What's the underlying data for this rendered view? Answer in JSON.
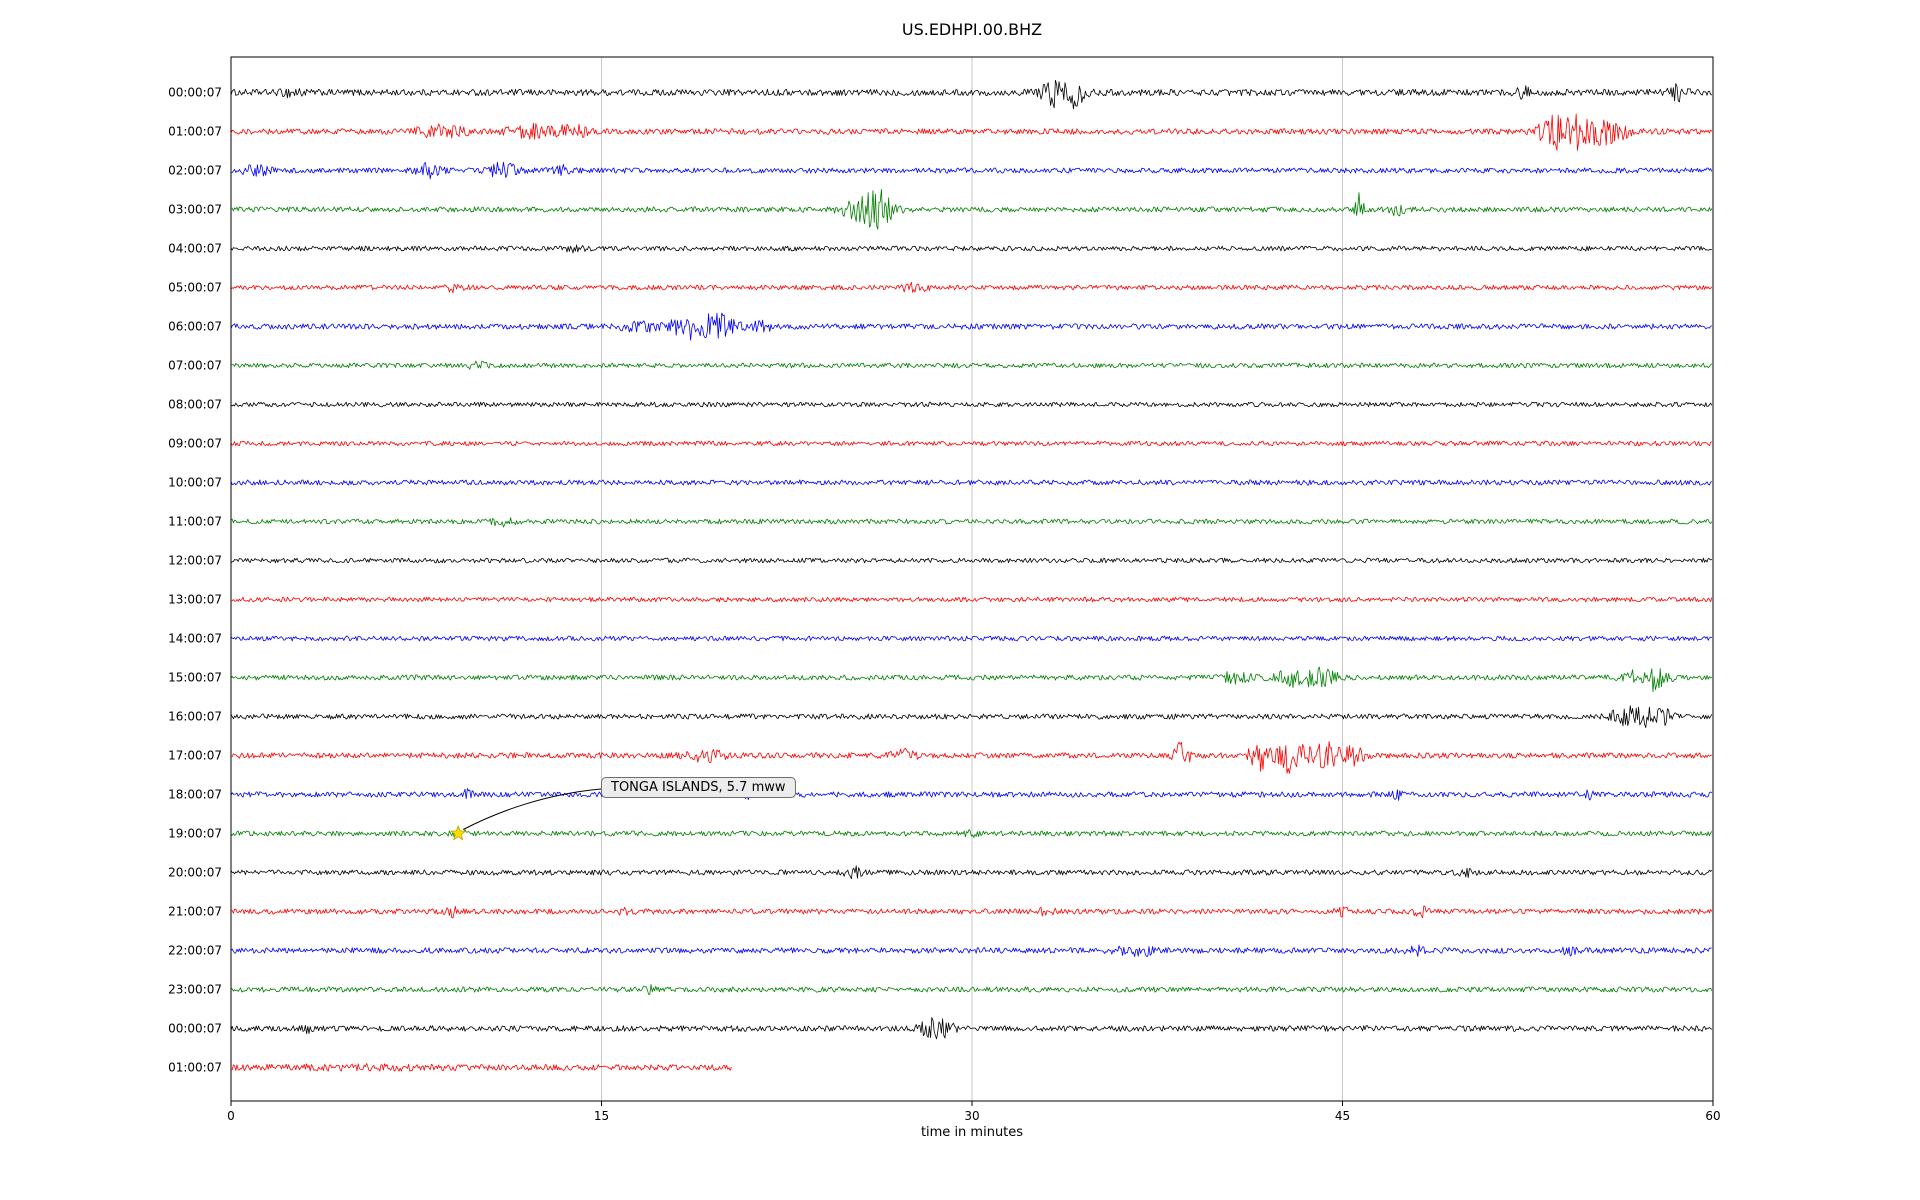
{
  "window": {
    "title": "US.EDHPI.00.BHZ"
  },
  "chart_data": {
    "type": "line",
    "subtype": "helicorder-seismogram",
    "title": "US.EDHPI.00.BHZ",
    "xlabel": "time in minutes",
    "xlim": [
      0,
      60
    ],
    "x_ticks": [
      0,
      15,
      30,
      45,
      60
    ],
    "grid": {
      "vertical_minutes": [
        15,
        30,
        45
      ],
      "color": "#c8c8c8"
    },
    "trace_color_cycle": [
      "#000000",
      "#ff0000",
      "#0000ff",
      "#008000"
    ],
    "annotation": {
      "text": "TONGA ISLANDS, 5.7 mww",
      "row_label": "19:00:07",
      "marker_minute": 9.2,
      "marker": "star",
      "marker_color": "#ffe000"
    },
    "rows": [
      {
        "label": "00:00:07",
        "color": "#000000",
        "base": 3.2,
        "duration": 60,
        "events": [
          [
            2.5,
            0.4,
            4
          ],
          [
            33.5,
            0.7,
            13
          ],
          [
            34.2,
            0.4,
            8
          ],
          [
            52.3,
            0.25,
            6
          ],
          [
            58.6,
            0.35,
            8
          ]
        ]
      },
      {
        "label": "01:00:07",
        "color": "#ff0000",
        "base": 2.8,
        "duration": 60,
        "events": [
          [
            8.5,
            1.0,
            5
          ],
          [
            12.0,
            0.9,
            6
          ],
          [
            13.8,
            0.6,
            6
          ],
          [
            53.3,
            0.4,
            14
          ],
          [
            54.3,
            0.9,
            17
          ],
          [
            55.8,
            0.7,
            11
          ]
        ]
      },
      {
        "label": "02:00:07",
        "color": "#0000ff",
        "base": 2.6,
        "duration": 60,
        "events": [
          [
            1.0,
            0.6,
            4
          ],
          [
            8.0,
            0.5,
            7
          ],
          [
            11.0,
            0.5,
            8
          ],
          [
            13.5,
            0.4,
            5
          ]
        ]
      },
      {
        "label": "03:00:07",
        "color": "#008000",
        "base": 2.6,
        "duration": 60,
        "events": [
          [
            25.8,
            0.9,
            14
          ],
          [
            26.3,
            0.4,
            10
          ],
          [
            45.7,
            0.15,
            19
          ],
          [
            47.2,
            0.3,
            5
          ]
        ]
      },
      {
        "label": "04:00:07",
        "color": "#000000",
        "base": 2.4,
        "duration": 60,
        "events": [
          [
            14.0,
            0.4,
            3
          ]
        ]
      },
      {
        "label": "05:00:07",
        "color": "#ff0000",
        "base": 2.4,
        "duration": 60,
        "events": [
          [
            9.0,
            0.4,
            3
          ],
          [
            27.6,
            0.5,
            4
          ]
        ]
      },
      {
        "label": "06:00:07",
        "color": "#0000ff",
        "base": 2.7,
        "duration": 60,
        "events": [
          [
            16.5,
            0.7,
            5
          ],
          [
            18.7,
            0.9,
            11
          ],
          [
            19.8,
            0.7,
            9
          ],
          [
            21.5,
            0.5,
            4
          ]
        ]
      },
      {
        "label": "07:00:07",
        "color": "#008000",
        "base": 2.4,
        "duration": 60,
        "events": [
          [
            10.0,
            0.4,
            3
          ]
        ]
      },
      {
        "label": "08:00:07",
        "color": "#000000",
        "base": 2.3,
        "duration": 60,
        "events": []
      },
      {
        "label": "09:00:07",
        "color": "#ff0000",
        "base": 2.3,
        "duration": 60,
        "events": []
      },
      {
        "label": "10:00:07",
        "color": "#0000ff",
        "base": 2.6,
        "duration": 60,
        "events": []
      },
      {
        "label": "11:00:07",
        "color": "#008000",
        "base": 2.4,
        "duration": 60,
        "events": [
          [
            11.0,
            0.4,
            4
          ]
        ]
      },
      {
        "label": "12:00:07",
        "color": "#000000",
        "base": 2.3,
        "duration": 60,
        "events": []
      },
      {
        "label": "13:00:07",
        "color": "#ff0000",
        "base": 2.3,
        "duration": 60,
        "events": []
      },
      {
        "label": "14:00:07",
        "color": "#0000ff",
        "base": 2.4,
        "duration": 60,
        "events": []
      },
      {
        "label": "15:00:07",
        "color": "#008000",
        "base": 2.6,
        "duration": 60,
        "events": [
          [
            40.7,
            0.5,
            6
          ],
          [
            43.2,
            0.9,
            8
          ],
          [
            44.3,
            0.5,
            6
          ],
          [
            57.2,
            0.7,
            9
          ],
          [
            57.8,
            0.4,
            7
          ]
        ]
      },
      {
        "label": "16:00:07",
        "color": "#000000",
        "base": 2.6,
        "duration": 60,
        "events": [
          [
            56.3,
            0.5,
            8
          ],
          [
            57.3,
            0.7,
            9
          ],
          [
            58.0,
            0.4,
            6
          ]
        ]
      },
      {
        "label": "17:00:07",
        "color": "#ff0000",
        "base": 2.8,
        "duration": 60,
        "events": [
          [
            19.2,
            0.7,
            5
          ],
          [
            27.2,
            0.5,
            5
          ],
          [
            38.5,
            0.3,
            13
          ],
          [
            41.6,
            0.4,
            16
          ],
          [
            42.9,
            0.5,
            18
          ],
          [
            44.4,
            0.7,
            14
          ],
          [
            45.6,
            0.4,
            9
          ]
        ]
      },
      {
        "label": "18:00:07",
        "color": "#0000ff",
        "base": 2.7,
        "duration": 60,
        "events": [
          [
            9.5,
            0.25,
            4
          ],
          [
            21.0,
            0.25,
            3
          ],
          [
            47.3,
            0.3,
            4
          ],
          [
            55.0,
            0.3,
            3
          ]
        ]
      },
      {
        "label": "19:00:07",
        "color": "#008000",
        "base": 2.5,
        "duration": 60,
        "events": [
          [
            9.2,
            0.3,
            3
          ],
          [
            30.0,
            0.3,
            2
          ]
        ]
      },
      {
        "label": "20:00:07",
        "color": "#000000",
        "base": 2.6,
        "duration": 60,
        "events": [
          [
            25.2,
            0.35,
            5
          ],
          [
            50.0,
            0.3,
            3
          ]
        ]
      },
      {
        "label": "21:00:07",
        "color": "#ff0000",
        "base": 2.6,
        "duration": 60,
        "events": [
          [
            9.0,
            0.25,
            4
          ],
          [
            16.0,
            0.25,
            4
          ],
          [
            33.0,
            0.3,
            4
          ],
          [
            45.0,
            0.25,
            4
          ],
          [
            48.2,
            0.3,
            5
          ]
        ]
      },
      {
        "label": "22:00:07",
        "color": "#0000ff",
        "base": 2.8,
        "duration": 60,
        "events": [
          [
            36.6,
            0.7,
            6
          ],
          [
            48.0,
            0.4,
            4
          ],
          [
            54.2,
            0.3,
            3
          ]
        ]
      },
      {
        "label": "23:00:07",
        "color": "#008000",
        "base": 2.6,
        "duration": 60,
        "events": [
          [
            17.0,
            0.25,
            3
          ]
        ]
      },
      {
        "label": "00:00:07",
        "color": "#000000",
        "base": 2.8,
        "duration": 60,
        "events": [
          [
            3.0,
            0.3,
            3
          ],
          [
            28.4,
            0.5,
            9
          ],
          [
            29.0,
            0.3,
            7
          ]
        ]
      },
      {
        "label": "01:00:07",
        "color": "#ff0000",
        "base": 3.0,
        "duration": 20.3,
        "events": [
          [
            5.0,
            3.0,
            1
          ]
        ]
      }
    ]
  }
}
